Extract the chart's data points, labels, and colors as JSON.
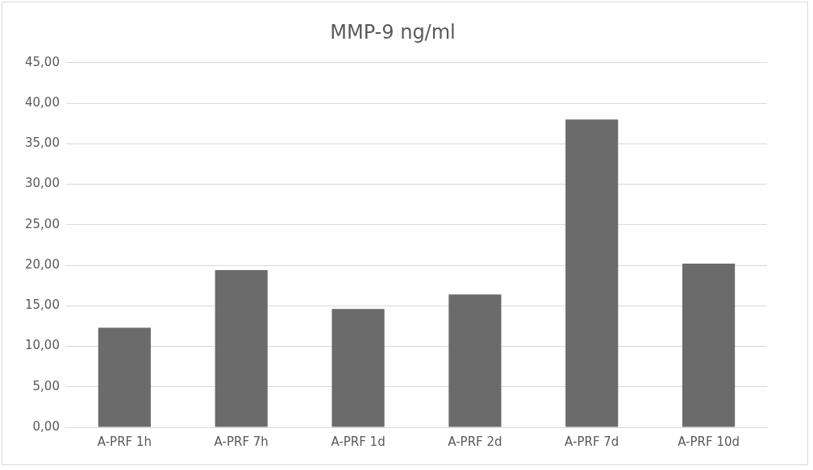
{
  "chart_data": {
    "type": "bar",
    "title": "MMP-9 ng/ml",
    "categories": [
      "A-PRF 1h",
      "A-PRF 7h",
      "A-PRF 1d",
      "A-PRF 2d",
      "A-PRF 7d",
      "A-PRF 10d"
    ],
    "values": [
      12.3,
      19.4,
      14.6,
      16.4,
      38.0,
      20.2
    ],
    "color": "#6b6b6b",
    "ylim": [
      0,
      45
    ],
    "yticks": [
      {
        "value": 0,
        "label": "0,00"
      },
      {
        "value": 5,
        "label": "5,00"
      },
      {
        "value": 10,
        "label": "10,00"
      },
      {
        "value": 15,
        "label": "15,00"
      },
      {
        "value": 20,
        "label": "20,00"
      },
      {
        "value": 25,
        "label": "25,00"
      },
      {
        "value": 30,
        "label": "30,00"
      },
      {
        "value": 35,
        "label": "35,00"
      },
      {
        "value": 40,
        "label": "40,00"
      },
      {
        "value": 45,
        "label": "45,00"
      }
    ],
    "grid": "y",
    "legend": false
  }
}
